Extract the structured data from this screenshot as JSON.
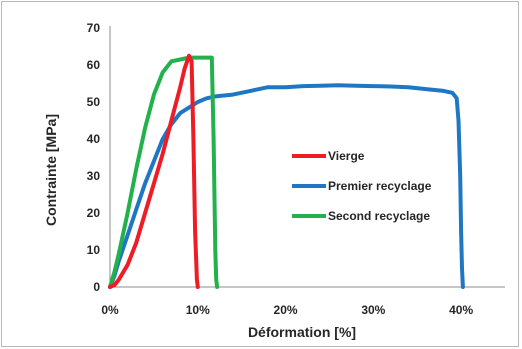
{
  "chart_data": {
    "type": "line",
    "xlabel": "Déformation [%]",
    "ylabel": "Contrainte [MPa]",
    "xlim": [
      0,
      45
    ],
    "ylim": [
      0,
      70
    ],
    "x_ticks": [
      0,
      10,
      20,
      30,
      40
    ],
    "x_tick_labels": [
      "0%",
      "10%",
      "20%",
      "30%",
      "40%"
    ],
    "y_ticks": [
      0,
      10,
      20,
      30,
      40,
      50,
      60,
      70
    ],
    "y_tick_labels": [
      "0",
      "10",
      "20",
      "30",
      "40",
      "50",
      "60",
      "70"
    ],
    "grid": false,
    "legend_position": "center-right",
    "series": [
      {
        "name": "Vierge",
        "color": "#ee1c24",
        "points": [
          [
            0,
            0
          ],
          [
            0.5,
            0.5
          ],
          [
            1,
            2
          ],
          [
            2,
            6
          ],
          [
            3,
            12
          ],
          [
            4,
            20
          ],
          [
            5,
            28
          ],
          [
            6,
            36
          ],
          [
            7,
            45
          ],
          [
            8,
            54
          ],
          [
            8.5,
            59
          ],
          [
            9,
            62.5
          ],
          [
            9.3,
            61
          ],
          [
            9.5,
            40
          ],
          [
            9.7,
            15
          ],
          [
            9.9,
            2
          ],
          [
            10,
            0
          ]
        ]
      },
      {
        "name": "Premier recyclage",
        "color": "#1f77c4",
        "points": [
          [
            0,
            0
          ],
          [
            0.5,
            3
          ],
          [
            1,
            7
          ],
          [
            2,
            14
          ],
          [
            3,
            21
          ],
          [
            4,
            28
          ],
          [
            5,
            34
          ],
          [
            6,
            40
          ],
          [
            7,
            44
          ],
          [
            8,
            47
          ],
          [
            9,
            48.5
          ],
          [
            10,
            50
          ],
          [
            11,
            51
          ],
          [
            12,
            51.5
          ],
          [
            14,
            52
          ],
          [
            16,
            53
          ],
          [
            18,
            54
          ],
          [
            20,
            54
          ],
          [
            22,
            54.3
          ],
          [
            24,
            54.4
          ],
          [
            26,
            54.5
          ],
          [
            28,
            54.4
          ],
          [
            30,
            54.3
          ],
          [
            32,
            54.2
          ],
          [
            34,
            54
          ],
          [
            36,
            53.5
          ],
          [
            38,
            53
          ],
          [
            39,
            52.5
          ],
          [
            39.5,
            51
          ],
          [
            39.7,
            45
          ],
          [
            39.9,
            30
          ],
          [
            40,
            15
          ],
          [
            40.1,
            5
          ],
          [
            40.2,
            0
          ]
        ]
      },
      {
        "name": "Second recyclage",
        "color": "#22b14c",
        "points": [
          [
            0,
            0
          ],
          [
            0.5,
            4
          ],
          [
            1,
            9
          ],
          [
            2,
            20
          ],
          [
            3,
            32
          ],
          [
            4,
            43
          ],
          [
            5,
            52
          ],
          [
            6,
            58
          ],
          [
            7,
            61
          ],
          [
            8,
            61.5
          ],
          [
            9,
            62
          ],
          [
            10,
            62
          ],
          [
            11,
            62
          ],
          [
            11.6,
            62
          ],
          [
            11.8,
            40
          ],
          [
            12,
            10
          ],
          [
            12.1,
            2
          ],
          [
            12.2,
            0
          ]
        ]
      }
    ]
  }
}
